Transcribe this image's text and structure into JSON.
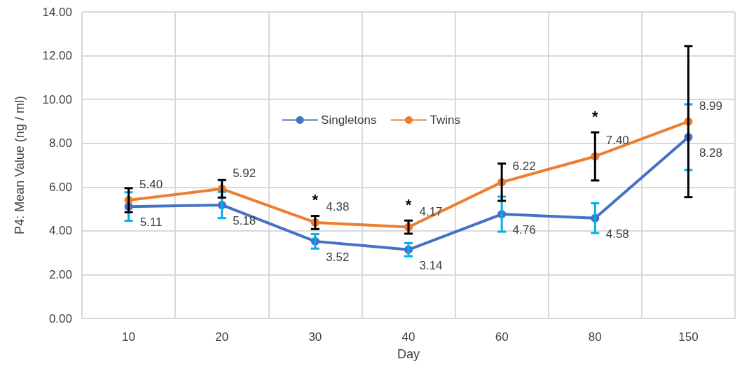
{
  "chart_data": {
    "type": "line",
    "xlabel": "Day",
    "ylabel": "P4: Mean Value (ng / ml)",
    "categories": [
      "10",
      "20",
      "30",
      "40",
      "60",
      "80",
      "150"
    ],
    "series": [
      {
        "name": "Singletons",
        "color": "#4472c4",
        "values": [
          5.11,
          5.18,
          3.52,
          3.14,
          4.76,
          4.58,
          8.28
        ],
        "errors": [
          0.65,
          0.6,
          0.33,
          0.3,
          0.8,
          0.68,
          1.5
        ],
        "value_labels": [
          "5.11",
          "5.18",
          "3.52",
          "3.14",
          "4.76",
          "4.58",
          "8.28"
        ]
      },
      {
        "name": "Twins",
        "color": "#ed7d31",
        "values": [
          5.4,
          5.92,
          4.38,
          4.17,
          6.22,
          7.4,
          8.99
        ],
        "errors": [
          0.55,
          0.4,
          0.3,
          0.3,
          0.85,
          1.1,
          3.45
        ],
        "value_labels": [
          "5.40",
          "5.92",
          "4.38",
          "4.17",
          "6.22",
          "7.40",
          "8.99"
        ]
      }
    ],
    "ylim": [
      0,
      14
    ],
    "yticks": [
      {
        "value": 0,
        "label": "0.00"
      },
      {
        "value": 2,
        "label": "2.00"
      },
      {
        "value": 4,
        "label": "4.00"
      },
      {
        "value": 6,
        "label": "6.00"
      },
      {
        "value": 8,
        "label": "8.00"
      },
      {
        "value": 10,
        "label": "10.00"
      },
      {
        "value": 12,
        "label": "12.00"
      },
      {
        "value": 14,
        "label": "14.00"
      }
    ],
    "annotations": [
      {
        "text": "*",
        "x": "30",
        "y": 4.38
      },
      {
        "text": "*",
        "x": "40",
        "y": 4.17
      },
      {
        "text": "*",
        "x": "80",
        "y": 7.4
      }
    ],
    "grid": true,
    "legend": "top",
    "marker": "circle",
    "line_style": "solid"
  }
}
